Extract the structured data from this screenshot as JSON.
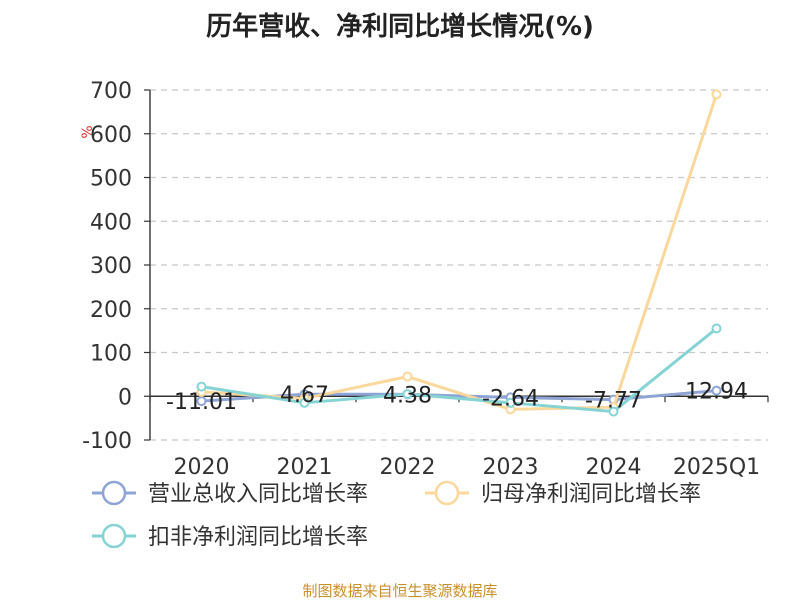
{
  "title": "历年营收、净利同比增长情况(%)",
  "source": "制图数据来自恒生聚源数据库",
  "chart_data": {
    "type": "line",
    "title": "历年营收、净利同比增长情况(%)",
    "ylabel": "%",
    "xlabel": "",
    "categories": [
      "2020",
      "2021",
      "2022",
      "2023",
      "2024",
      "2025Q1"
    ],
    "ylim": [
      -100,
      700
    ],
    "yticks": [
      -100,
      0,
      100,
      200,
      300,
      400,
      500,
      600,
      700
    ],
    "grid": true,
    "legend_position": "bottom",
    "series": [
      {
        "name": "营业总收入同比增长率",
        "color": "#8da4d4",
        "values": [
          -11.01,
          4.67,
          4.38,
          -2.64,
          -7.77,
          12.94
        ],
        "labels": [
          "-11.01",
          "4.67",
          "4.38",
          "-2.64",
          "-7.77",
          "12.94"
        ]
      },
      {
        "name": "归母净利润同比增长率",
        "color": "#fad79b",
        "values": [
          10,
          -5,
          45,
          -30,
          -25,
          690
        ]
      },
      {
        "name": "扣非净利润同比增长率",
        "color": "#86d3d3",
        "values": [
          22,
          -15,
          5,
          -15,
          -35,
          155
        ]
      }
    ]
  }
}
